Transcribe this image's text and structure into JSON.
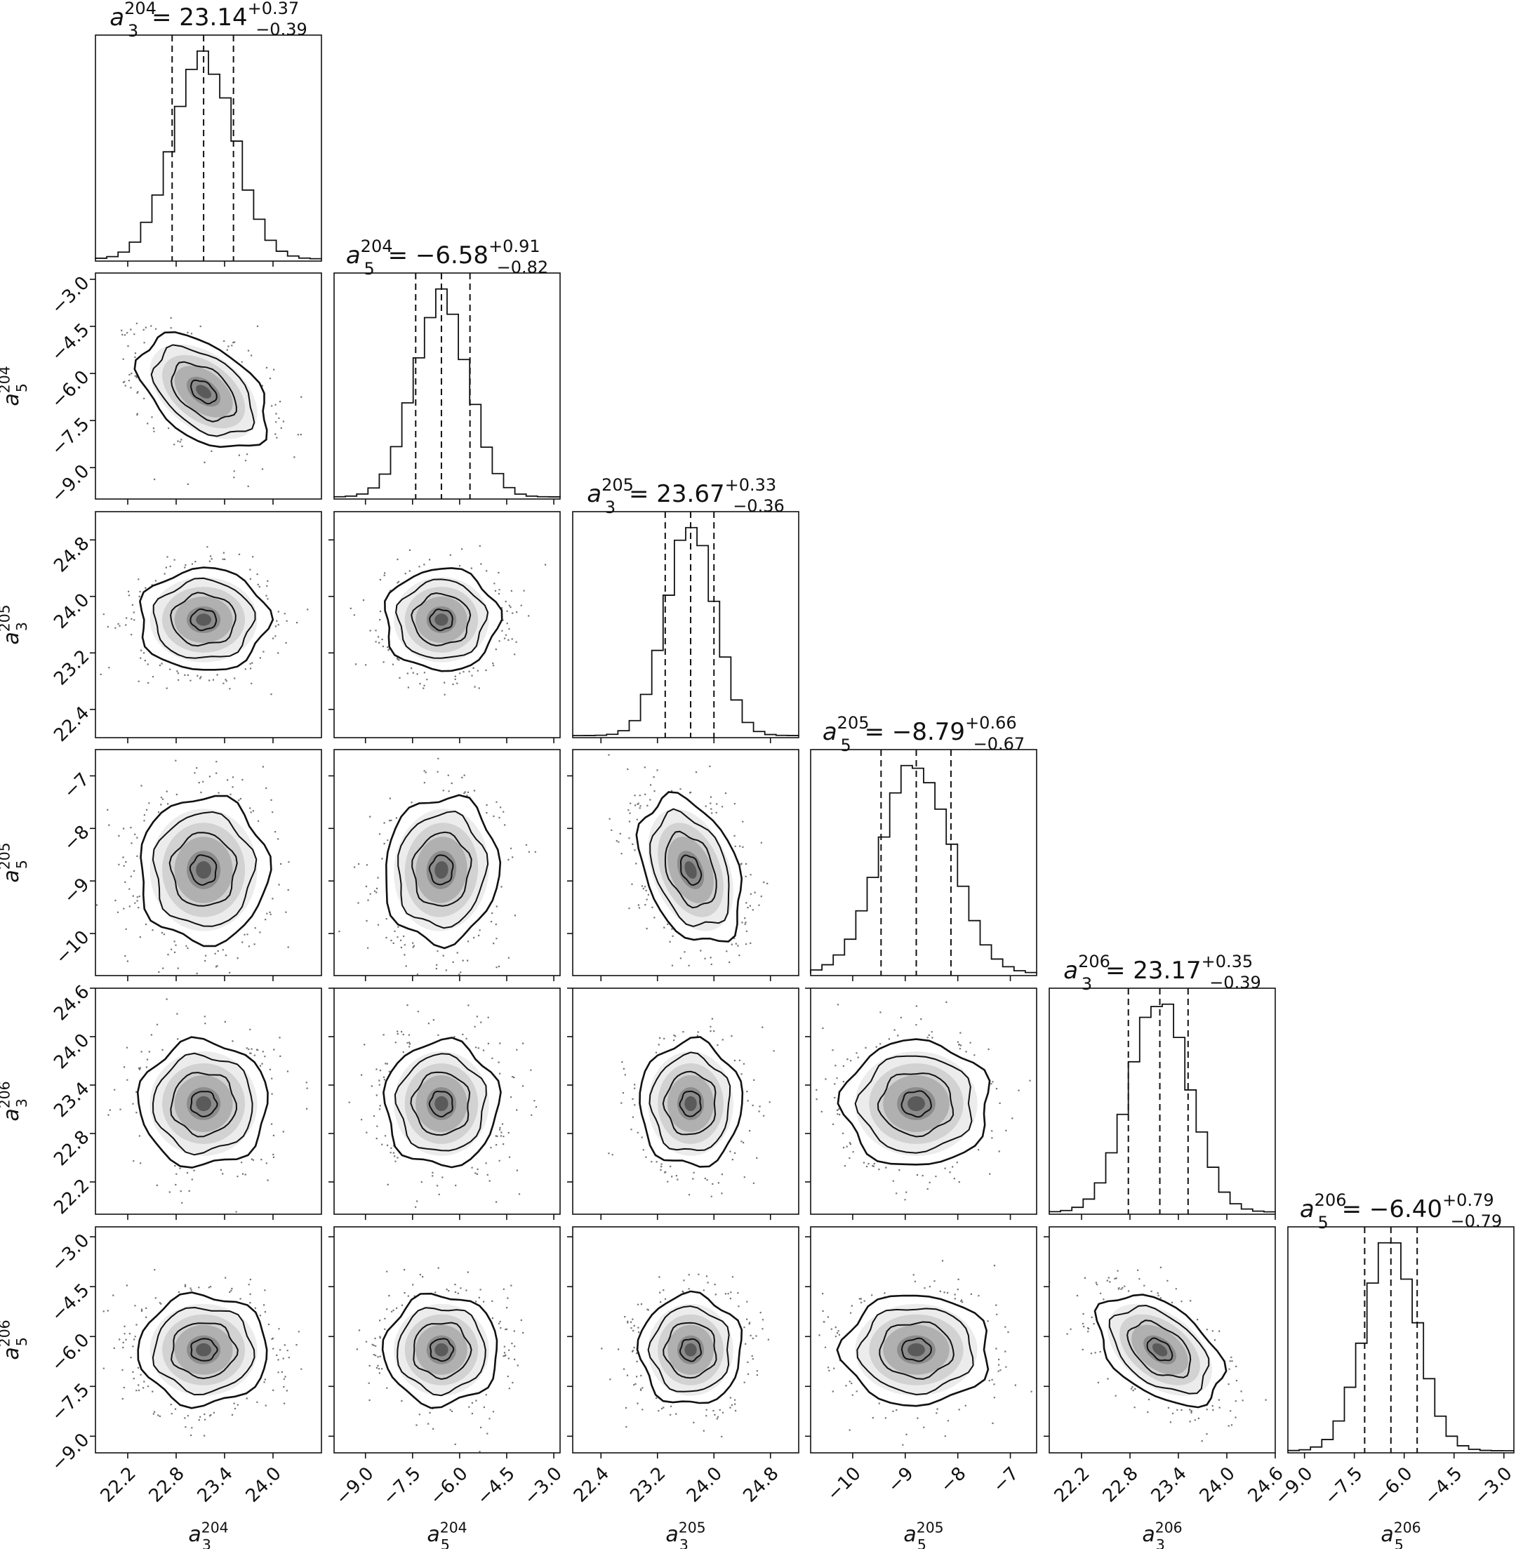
{
  "chart_data": {
    "type": "corner",
    "parameters": [
      {
        "symbol": "a",
        "sub": "3",
        "sup": "204",
        "median": "23.14",
        "upper": "+0.37",
        "lower": "−0.39",
        "range": [
          21.8,
          24.6
        ],
        "ticks": [
          {
            "v": 22.2,
            "label": "22.2"
          },
          {
            "v": 22.8,
            "label": "22.8"
          },
          {
            "v": 23.4,
            "label": "23.4"
          },
          {
            "v": 24.0,
            "label": "24.0"
          }
        ],
        "quantiles": [
          22.75,
          23.14,
          23.51
        ]
      },
      {
        "symbol": "a",
        "sub": "5",
        "sup": "204",
        "median": "−6.58",
        "upper": "+0.91",
        "lower": "−0.82",
        "range": [
          -10.0,
          -2.8
        ],
        "ticks": [
          {
            "v": -9.0,
            "label": "−9.0"
          },
          {
            "v": -7.5,
            "label": "−7.5"
          },
          {
            "v": -6.0,
            "label": "−6.0"
          },
          {
            "v": -4.5,
            "label": "−4.5"
          },
          {
            "v": -3.0,
            "label": "−3.0"
          }
        ],
        "quantiles": [
          -7.4,
          -6.58,
          -5.67
        ]
      },
      {
        "symbol": "a",
        "sub": "3",
        "sup": "205",
        "median": "23.67",
        "upper": "+0.33",
        "lower": "−0.36",
        "range": [
          22.0,
          25.2
        ],
        "ticks": [
          {
            "v": 22.4,
            "label": "22.4"
          },
          {
            "v": 23.2,
            "label": "23.2"
          },
          {
            "v": 24.0,
            "label": "24.0"
          },
          {
            "v": 24.8,
            "label": "24.8"
          }
        ],
        "quantiles": [
          23.31,
          23.67,
          24.0
        ]
      },
      {
        "symbol": "a",
        "sub": "5",
        "sup": "205",
        "median": "−8.79",
        "upper": "+0.66",
        "lower": "−0.67",
        "range": [
          -10.8,
          -6.5
        ],
        "ticks": [
          {
            "v": -10,
            "label": "−10"
          },
          {
            "v": -9,
            "label": "−9"
          },
          {
            "v": -8,
            "label": "−8"
          },
          {
            "v": -7,
            "label": "−7"
          }
        ],
        "quantiles": [
          -9.46,
          -8.79,
          -8.13
        ]
      },
      {
        "symbol": "a",
        "sub": "3",
        "sup": "206",
        "median": "23.17",
        "upper": "+0.35",
        "lower": "−0.39",
        "range": [
          21.8,
          24.6
        ],
        "ticks": [
          {
            "v": 22.2,
            "label": "22.2"
          },
          {
            "v": 22.8,
            "label": "22.8"
          },
          {
            "v": 23.4,
            "label": "23.4"
          },
          {
            "v": 24.0,
            "label": "24.0"
          },
          {
            "v": 24.6,
            "label": "24.6"
          }
        ],
        "quantiles": [
          22.78,
          23.17,
          23.52
        ]
      },
      {
        "symbol": "a",
        "sub": "5",
        "sup": "206",
        "median": "−6.40",
        "upper": "+0.79",
        "lower": "−0.79",
        "range": [
          -9.5,
          -2.7
        ],
        "ticks": [
          {
            "v": -9.0,
            "label": "−9.0"
          },
          {
            "v": -7.5,
            "label": "−7.5"
          },
          {
            "v": -6.0,
            "label": "−6.0"
          },
          {
            "v": -4.5,
            "label": "−4.5"
          },
          {
            "v": -3.0,
            "label": "−3.0"
          }
        ],
        "quantiles": [
          -7.19,
          -6.4,
          -5.61
        ]
      }
    ],
    "correlations": {
      "1-0": -0.45,
      "2-0": 0.0,
      "2-1": 0.0,
      "3-0": 0.0,
      "3-1": 0.05,
      "3-2": -0.35,
      "4-0": 0.0,
      "4-1": 0.0,
      "4-2": 0.0,
      "4-3": 0.0,
      "5-0": 0.0,
      "5-1": 0.0,
      "5-2": 0.0,
      "5-3": 0.0,
      "5-4": -0.45
    },
    "histogram_style": "step",
    "quantile_lines": "dashed",
    "contour_levels": 4,
    "grid": false,
    "colors": {
      "line": "#111111",
      "density": "#000000",
      "background": "#ffffff"
    }
  }
}
